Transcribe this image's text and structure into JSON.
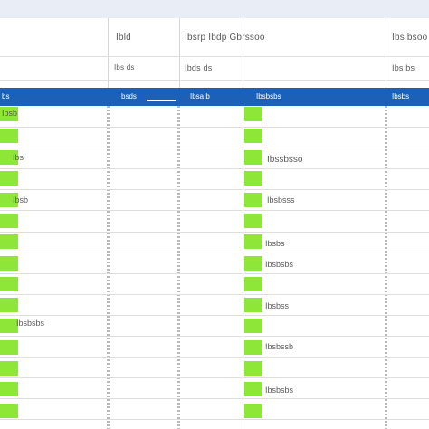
{
  "header": {
    "col2": "Ibld",
    "col3_top": "Ibsrp Ibdp Gbrssoo",
    "col5": "Ibs bsoo"
  },
  "subheader": {
    "col2": "Ibs ds",
    "col3": "Ibds ds",
    "col5": "Ibs bs"
  },
  "band": {
    "col1": "bs",
    "col2": "bsds",
    "col3": "Ibsa b",
    "col4": "Ibsbsbs",
    "col5": "Ibsbs"
  },
  "rows_left": [
    "Ibsb",
    "Ibs",
    "Ibsb",
    "Ibsbsbs"
  ],
  "rows_right": [
    "Ibssbsso",
    "Ibsbsss",
    "Ibsbs",
    "Ibsbsbs",
    "Ibsbss",
    "Ibsbssb",
    "Ibsbsbs"
  ],
  "colors": {
    "accent_band": "#1c61b8",
    "status_green": "#8ee639"
  }
}
